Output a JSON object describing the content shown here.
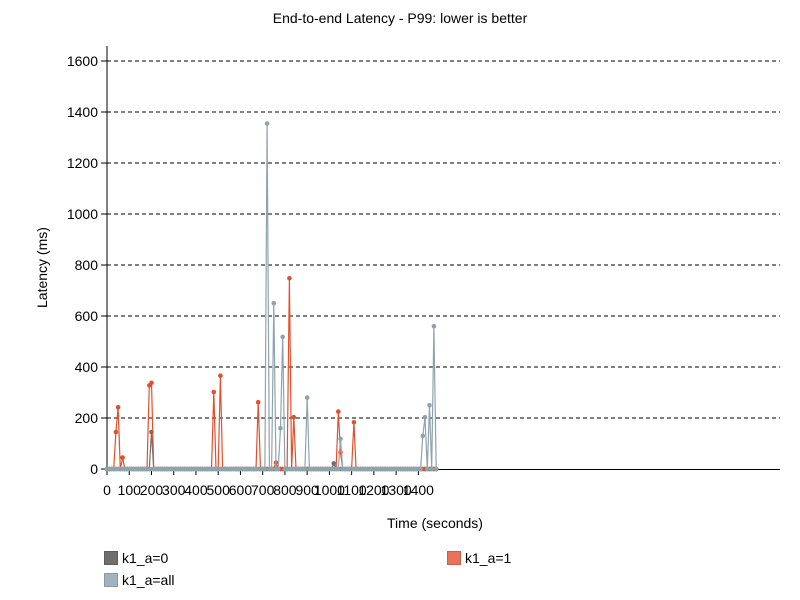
{
  "chart_data": {
    "type": "line",
    "title": "End-to-end Latency - P99: lower is better",
    "xlabel": "Time (seconds)",
    "ylabel": "Latency (ms)",
    "xlim": [
      0,
      1490
    ],
    "ylim": [
      0,
      1600
    ],
    "x_ticks": [
      0,
      100,
      200,
      300,
      400,
      500,
      600,
      700,
      800,
      900,
      1000,
      1100,
      1200,
      1300,
      1400
    ],
    "y_ticks": [
      0,
      200,
      400,
      600,
      800,
      1000,
      1200,
      1400,
      1600
    ],
    "grid": "horizontal dashed",
    "legend_position": "bottom",
    "series": [
      {
        "name": "k1_a=0",
        "color": "#6e6e6e",
        "x_range": [
          0,
          1480
        ],
        "x_step": 10,
        "points": [
          [
            200,
            145
          ],
          [
            1020,
            22
          ]
        ]
      },
      {
        "name": "k1_a=1",
        "color": "#e0512b",
        "x_range": [
          0,
          1480
        ],
        "x_step": 10,
        "points": [
          [
            40,
            145
          ],
          [
            50,
            242
          ],
          [
            70,
            45
          ],
          [
            190,
            328
          ],
          [
            200,
            338
          ],
          [
            480,
            302
          ],
          [
            510,
            366
          ],
          [
            680,
            262
          ],
          [
            760,
            25
          ],
          [
            820,
            748
          ],
          [
            840,
            203
          ],
          [
            1040,
            225
          ],
          [
            1050,
            65
          ],
          [
            1110,
            183
          ]
        ]
      },
      {
        "name": "k1_a=all",
        "color": "#8fa3ad",
        "x_range": [
          0,
          1480
        ],
        "x_step": 10,
        "points": [
          [
            720,
            1355
          ],
          [
            750,
            650
          ],
          [
            780,
            160
          ],
          [
            790,
            518
          ],
          [
            900,
            280
          ],
          [
            1050,
            118
          ],
          [
            1420,
            130
          ],
          [
            1430,
            203
          ],
          [
            1450,
            250
          ],
          [
            1470,
            560
          ]
        ]
      }
    ]
  }
}
